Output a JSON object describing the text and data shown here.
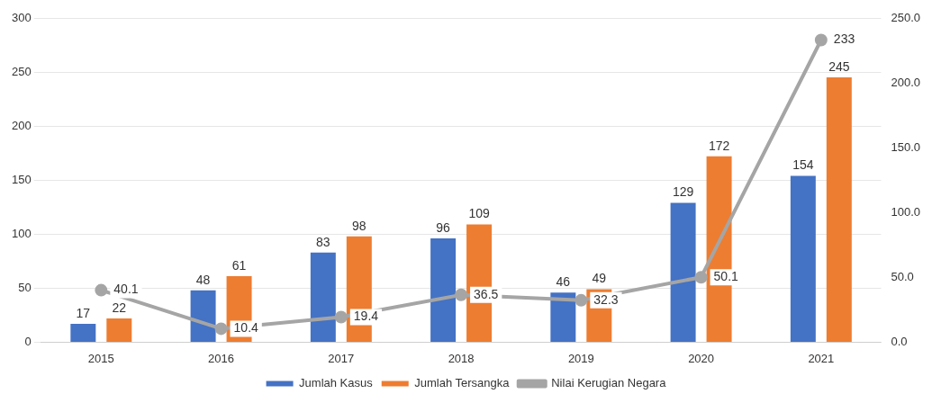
{
  "chart_data": {
    "type": "bar",
    "categories": [
      "2015",
      "2016",
      "2017",
      "2018",
      "2019",
      "2020",
      "2021"
    ],
    "series": [
      {
        "name": "Jumlah Kasus",
        "color": "#4472c4",
        "values": [
          17,
          48,
          83,
          96,
          46,
          129,
          154
        ]
      },
      {
        "name": "Jumlah Tersangka",
        "color": "#ed7d31",
        "values": [
          22,
          61,
          98,
          109,
          49,
          172,
          245
        ]
      },
      {
        "name": "Nilai Kerugian Negara",
        "type": "line",
        "axis": "y2",
        "color": "#a5a5a5",
        "values": [
          40.1,
          10.4,
          19.4,
          36.5,
          32.3,
          50.1,
          233
        ]
      }
    ],
    "ylim": [
      0,
      300
    ],
    "yticks": [
      0,
      50,
      100,
      150,
      200,
      250,
      300
    ],
    "y2lim": [
      0,
      250
    ],
    "y2ticks": [
      {
        "value": 0,
        "label": "0.0"
      },
      {
        "value": 50,
        "label": "50.0"
      },
      {
        "value": 100,
        "label": "100.0"
      },
      {
        "value": 150,
        "label": "150.0"
      },
      {
        "value": 200,
        "label": "200.0"
      },
      {
        "value": 250,
        "label": "250.0"
      }
    ],
    "grid": "y",
    "legend": "bottom",
    "marker": "circle",
    "line_style": "solid",
    "data_labels": true
  }
}
